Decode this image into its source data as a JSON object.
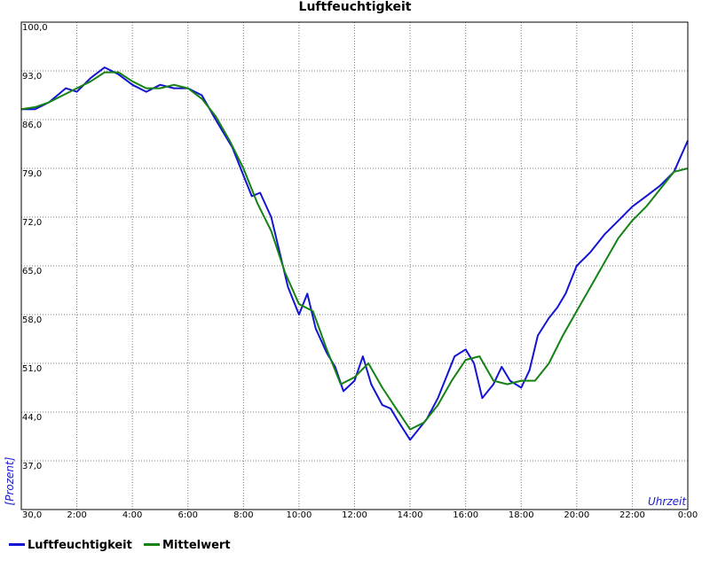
{
  "chart_data": {
    "type": "line",
    "title": "Luftfeuchtigkeit",
    "xlabel": "Uhrzeit",
    "ylabel": "[Prozent]",
    "ylim": [
      30,
      100
    ],
    "xlim": [
      0,
      24
    ],
    "y_ticks": [
      "30,0",
      "37,0",
      "44,0",
      "51,0",
      "58,0",
      "65,0",
      "72,0",
      "79,0",
      "86,0",
      "93,0",
      "100,0"
    ],
    "x_ticks": [
      "2:00",
      "4:00",
      "6:00",
      "8:00",
      "10:00",
      "12:00",
      "14:00",
      "16:00",
      "18:00",
      "20:00",
      "22:00",
      "0:00"
    ],
    "grid": true,
    "legend_position": "bottom-left",
    "series": [
      {
        "name": "Luftfeuchtigkeit",
        "color": "#1414d4",
        "x": [
          0,
          0.5,
          1.0,
          1.3,
          1.6,
          2.0,
          2.5,
          3.0,
          3.5,
          4.0,
          4.5,
          5.0,
          5.5,
          6.0,
          6.5,
          7.0,
          7.3,
          7.6,
          8.0,
          8.3,
          8.6,
          9.0,
          9.3,
          9.6,
          10.0,
          10.3,
          10.6,
          11.0,
          11.3,
          11.6,
          12.0,
          12.3,
          12.6,
          13.0,
          13.3,
          13.6,
          14.0,
          14.3,
          14.6,
          15.0,
          15.3,
          15.6,
          16.0,
          16.3,
          16.6,
          17.0,
          17.3,
          17.6,
          18.0,
          18.3,
          18.6,
          19.0,
          19.3,
          19.6,
          20.0,
          20.5,
          21.0,
          21.5,
          22.0,
          22.5,
          23.0,
          23.5,
          24.0
        ],
        "values": [
          87.5,
          87.5,
          88.5,
          89.5,
          90.5,
          90.0,
          92.0,
          93.5,
          92.5,
          91.0,
          90.0,
          91.0,
          90.5,
          90.5,
          89.5,
          86.0,
          84.0,
          82.0,
          78.0,
          75.0,
          75.5,
          72.0,
          67.0,
          62.0,
          58.0,
          61.0,
          56.0,
          52.5,
          50.5,
          47.0,
          48.5,
          52.0,
          48.0,
          45.0,
          44.5,
          42.5,
          40.0,
          41.5,
          43.0,
          46.0,
          49.0,
          52.0,
          53.0,
          51.0,
          46.0,
          48.0,
          50.5,
          48.5,
          47.5,
          50.0,
          55.0,
          57.5,
          59.0,
          61.0,
          65.0,
          67.0,
          69.5,
          71.5,
          73.5,
          75.0,
          76.5,
          78.5,
          83.0
        ]
      },
      {
        "name": "Mittelwert",
        "color": "#148214",
        "x": [
          0,
          0.5,
          1.0,
          1.5,
          2.0,
          2.5,
          3.0,
          3.5,
          4.0,
          4.5,
          5.0,
          5.5,
          6.0,
          6.5,
          7.0,
          7.5,
          8.0,
          8.5,
          9.0,
          9.5,
          10.0,
          10.5,
          11.0,
          11.5,
          12.0,
          12.5,
          13.0,
          13.5,
          14.0,
          14.5,
          15.0,
          15.5,
          16.0,
          16.5,
          17.0,
          17.5,
          18.0,
          18.5,
          19.0,
          19.5,
          20.0,
          20.5,
          21.0,
          21.5,
          22.0,
          22.5,
          23.0,
          23.5,
          24.0
        ],
        "values": [
          87.5,
          87.8,
          88.5,
          89.5,
          90.5,
          91.5,
          92.8,
          92.8,
          91.5,
          90.5,
          90.5,
          91.0,
          90.5,
          89.0,
          86.5,
          83.0,
          79.0,
          74.0,
          70.0,
          64.0,
          59.5,
          58.5,
          53.0,
          48.0,
          49.0,
          51.0,
          47.5,
          44.5,
          41.5,
          42.5,
          45.0,
          48.5,
          51.5,
          52.0,
          48.5,
          48.0,
          48.5,
          48.5,
          51.0,
          55.0,
          58.5,
          62.0,
          65.5,
          69.0,
          71.5,
          73.5,
          76.0,
          78.5,
          79.0
        ]
      }
    ]
  }
}
